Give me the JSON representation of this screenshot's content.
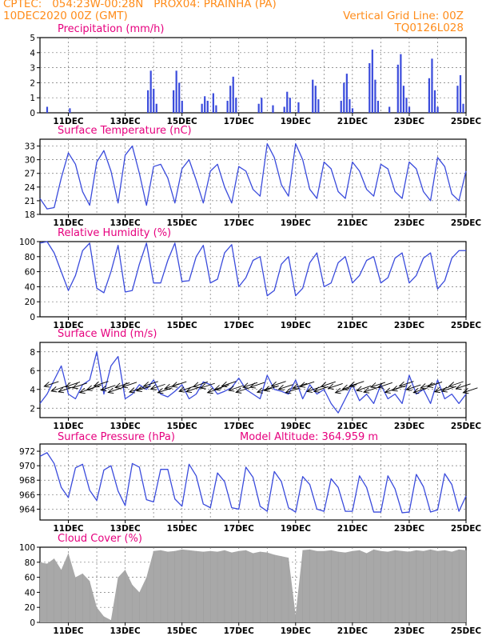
{
  "header": {
    "line1": "CPTEC:   054:23W-00:28N   PROX04: PRAINHA (PA)",
    "line2": "10DEC2020 00Z (GMT)",
    "right1": "Vertical Grid Line: 00Z",
    "right2": "TQ0126L028"
  },
  "x_dates": [
    "11DEC",
    "13DEC",
    "15DEC",
    "17DEC",
    "19DEC",
    "21DEC",
    "23DEC",
    "25DEC"
  ],
  "colors": {
    "series": "#3a4bdc",
    "title": "#e6007e",
    "header": "#ff8c1a",
    "cloud": "#a8a8a8"
  },
  "chart_data": [
    {
      "type": "bar",
      "title": "Precipitation (mm/h)",
      "ylim": [
        0,
        5
      ],
      "yticks": [
        0,
        1,
        2,
        3,
        4,
        5
      ],
      "x_range_days": [
        10,
        25
      ],
      "spikes": [
        [
          10.25,
          0.4
        ],
        [
          11.05,
          0.3
        ],
        [
          13.8,
          1.5
        ],
        [
          13.9,
          2.8
        ],
        [
          14.0,
          1.6
        ],
        [
          14.1,
          0.6
        ],
        [
          14.7,
          1.5
        ],
        [
          14.8,
          2.8
        ],
        [
          14.9,
          2.0
        ],
        [
          15.0,
          0.8
        ],
        [
          15.7,
          0.6
        ],
        [
          15.8,
          1.1
        ],
        [
          15.9,
          0.8
        ],
        [
          16.1,
          1.3
        ],
        [
          16.2,
          0.5
        ],
        [
          16.6,
          0.8
        ],
        [
          16.7,
          1.8
        ],
        [
          16.8,
          2.4
        ],
        [
          16.9,
          1.0
        ],
        [
          17.7,
          0.6
        ],
        [
          17.8,
          1.0
        ],
        [
          18.2,
          0.5
        ],
        [
          18.6,
          0.4
        ],
        [
          18.7,
          1.4
        ],
        [
          18.8,
          1.0
        ],
        [
          19.1,
          0.7
        ],
        [
          19.6,
          2.2
        ],
        [
          19.7,
          1.8
        ],
        [
          19.8,
          0.9
        ],
        [
          20.6,
          0.8
        ],
        [
          20.7,
          2.0
        ],
        [
          20.8,
          2.6
        ],
        [
          20.9,
          0.9
        ],
        [
          21.0,
          0.3
        ],
        [
          21.6,
          3.3
        ],
        [
          21.7,
          4.2
        ],
        [
          21.8,
          2.2
        ],
        [
          21.9,
          0.8
        ],
        [
          22.3,
          0.4
        ],
        [
          22.6,
          3.2
        ],
        [
          22.7,
          3.9
        ],
        [
          22.8,
          1.8
        ],
        [
          22.9,
          1.0
        ],
        [
          23.0,
          0.4
        ],
        [
          23.7,
          2.3
        ],
        [
          23.8,
          3.6
        ],
        [
          23.9,
          1.5
        ],
        [
          24.0,
          0.4
        ],
        [
          24.7,
          1.8
        ],
        [
          24.8,
          2.5
        ],
        [
          24.9,
          0.6
        ]
      ]
    },
    {
      "type": "line",
      "title": "Surface Temperature (nC)",
      "ylim": [
        18,
        34.5
      ],
      "yticks": [
        18,
        21,
        24,
        27,
        30,
        33
      ],
      "x": [
        10.0,
        10.25,
        10.5,
        10.75,
        11.0,
        11.25,
        11.5,
        11.75,
        12.0,
        12.25,
        12.5,
        12.75,
        13.0,
        13.25,
        13.5,
        13.75,
        14.0,
        14.25,
        14.5,
        14.75,
        15.0,
        15.25,
        15.5,
        15.75,
        16.0,
        16.25,
        16.5,
        16.75,
        17.0,
        17.25,
        17.5,
        17.75,
        18.0,
        18.25,
        18.5,
        18.75,
        19.0,
        19.25,
        19.5,
        19.75,
        20.0,
        20.25,
        20.5,
        20.75,
        21.0,
        21.25,
        21.5,
        21.75,
        22.0,
        22.25,
        22.5,
        22.75,
        23.0,
        23.25,
        23.5,
        23.75,
        24.0,
        24.25,
        24.5,
        24.75,
        25.0
      ],
      "y": [
        21.5,
        19.2,
        19.5,
        26.0,
        31.5,
        29.0,
        23.0,
        20.0,
        29.5,
        32.0,
        27.5,
        20.5,
        31.0,
        33.0,
        27.0,
        20.0,
        28.5,
        29.0,
        26.0,
        20.5,
        28.0,
        30.0,
        25.5,
        20.5,
        27.5,
        29.0,
        24.0,
        20.5,
        28.5,
        27.5,
        23.5,
        22.0,
        33.5,
        30.5,
        24.5,
        22.0,
        33.5,
        30.0,
        23.5,
        21.5,
        29.5,
        28.0,
        23.0,
        21.5,
        29.5,
        27.5,
        23.5,
        22.0,
        29.0,
        28.0,
        23.0,
        21.5,
        29.5,
        28.0,
        23.0,
        21.0,
        30.5,
        28.5,
        22.5,
        21.0,
        27.5
      ]
    },
    {
      "type": "line",
      "title": "Relative Humidity (%)",
      "ylim": [
        0,
        100
      ],
      "yticks": [
        0,
        20,
        40,
        60,
        80,
        100
      ],
      "x": [
        10.0,
        10.25,
        10.5,
        10.75,
        11.0,
        11.25,
        11.5,
        11.75,
        12.0,
        12.25,
        12.5,
        12.75,
        13.0,
        13.25,
        13.5,
        13.75,
        14.0,
        14.25,
        14.5,
        14.75,
        15.0,
        15.25,
        15.5,
        15.75,
        16.0,
        16.25,
        16.5,
        16.75,
        17.0,
        17.25,
        17.5,
        17.75,
        18.0,
        18.25,
        18.5,
        18.75,
        19.0,
        19.25,
        19.5,
        19.75,
        20.0,
        20.25,
        20.5,
        20.75,
        21.0,
        21.25,
        21.5,
        21.75,
        22.0,
        22.25,
        22.5,
        22.75,
        23.0,
        23.25,
        23.5,
        23.75,
        24.0,
        24.25,
        24.5,
        24.75,
        25.0
      ],
      "y": [
        98,
        100,
        85,
        60,
        35,
        55,
        88,
        98,
        38,
        32,
        60,
        95,
        33,
        35,
        70,
        98,
        45,
        45,
        75,
        98,
        47,
        48,
        80,
        95,
        45,
        50,
        85,
        96,
        40,
        52,
        75,
        80,
        28,
        35,
        70,
        80,
        28,
        38,
        72,
        85,
        40,
        45,
        72,
        80,
        45,
        55,
        75,
        80,
        45,
        52,
        78,
        85,
        45,
        55,
        78,
        85,
        37,
        48,
        78,
        88,
        88
      ]
    },
    {
      "type": "line",
      "title": "Surface Wind (m/s)",
      "ylim": [
        1,
        9
      ],
      "yticks": [
        2,
        4,
        6,
        8
      ],
      "wind_arrows": "arrows pointing toward southwest (easterly winds)",
      "x": [
        10.0,
        10.25,
        10.5,
        10.75,
        11.0,
        11.25,
        11.5,
        11.75,
        12.0,
        12.25,
        12.5,
        12.75,
        13.0,
        13.25,
        13.5,
        13.75,
        14.0,
        14.25,
        14.5,
        14.75,
        15.0,
        15.25,
        15.5,
        15.75,
        16.0,
        16.25,
        16.5,
        16.75,
        17.0,
        17.25,
        17.5,
        17.75,
        18.0,
        18.25,
        18.5,
        18.75,
        19.0,
        19.25,
        19.5,
        19.75,
        20.0,
        20.25,
        20.5,
        20.75,
        21.0,
        21.25,
        21.5,
        21.75,
        22.0,
        22.25,
        22.5,
        22.75,
        23.0,
        23.25,
        23.5,
        23.75,
        24.0,
        24.25,
        24.5,
        24.75,
        25.0
      ],
      "y": [
        2.5,
        3.5,
        5.0,
        6.5,
        3.5,
        3.0,
        4.5,
        5.0,
        8.0,
        3.5,
        6.5,
        7.5,
        3.0,
        3.5,
        4.5,
        4.0,
        5.0,
        3.5,
        3.2,
        3.8,
        4.5,
        3.0,
        3.5,
        4.8,
        4.5,
        3.5,
        3.8,
        4.2,
        5.2,
        4.0,
        3.5,
        3.0,
        5.5,
        4.0,
        3.8,
        3.5,
        5.0,
        3.0,
        4.5,
        3.5,
        4.0,
        2.5,
        1.5,
        3.0,
        4.5,
        2.8,
        3.5,
        2.5,
        4.5,
        3.0,
        3.5,
        2.5,
        5.5,
        3.5,
        4.0,
        2.5,
        5.0,
        3.0,
        3.5,
        2.5,
        3.5
      ]
    },
    {
      "type": "line",
      "title": "Surface Pressure (hPa)",
      "annotation": "Model Altitude: 364.959 m",
      "ylim": [
        962.5,
        973
      ],
      "yticks": [
        964,
        966,
        968,
        970,
        972
      ],
      "x": [
        10.0,
        10.25,
        10.5,
        10.75,
        11.0,
        11.25,
        11.5,
        11.75,
        12.0,
        12.25,
        12.5,
        12.75,
        13.0,
        13.25,
        13.5,
        13.75,
        14.0,
        14.25,
        14.5,
        14.75,
        15.0,
        15.25,
        15.5,
        15.75,
        16.0,
        16.25,
        16.5,
        16.75,
        17.0,
        17.25,
        17.5,
        17.75,
        18.0,
        18.25,
        18.5,
        18.75,
        19.0,
        19.25,
        19.5,
        19.75,
        20.0,
        20.25,
        20.5,
        20.75,
        21.0,
        21.25,
        21.5,
        21.75,
        22.0,
        22.25,
        22.5,
        22.75,
        23.0,
        23.25,
        23.5,
        23.75,
        24.0,
        24.25,
        24.5,
        24.75,
        25.0
      ],
      "y": [
        971.3,
        971.8,
        970.3,
        967.0,
        965.6,
        969.7,
        970.2,
        966.6,
        965.2,
        969.4,
        970.0,
        966.5,
        964.5,
        970.3,
        969.8,
        965.3,
        965.0,
        969.5,
        969.5,
        965.4,
        964.4,
        970.2,
        968.6,
        964.7,
        964.2,
        969.0,
        967.8,
        964.2,
        964.0,
        969.8,
        968.4,
        964.4,
        963.7,
        969.2,
        967.8,
        964.2,
        963.6,
        968.5,
        967.4,
        964.0,
        963.7,
        968.2,
        967.0,
        963.7,
        963.7,
        968.6,
        967.0,
        963.6,
        963.6,
        968.6,
        966.8,
        963.5,
        963.6,
        968.8,
        967.1,
        963.6,
        963.9,
        968.9,
        967.4,
        963.7,
        965.8
      ]
    },
    {
      "type": "area",
      "title": "Cloud Cover (%)",
      "ylim": [
        0,
        100
      ],
      "yticks": [
        0,
        20,
        40,
        60,
        80,
        100
      ],
      "x": [
        10.0,
        10.25,
        10.5,
        10.75,
        11.0,
        11.25,
        11.5,
        11.75,
        12.0,
        12.25,
        12.5,
        12.75,
        13.0,
        13.25,
        13.5,
        13.75,
        14.0,
        14.25,
        14.5,
        14.75,
        15.0,
        15.25,
        15.5,
        15.75,
        16.0,
        16.25,
        16.5,
        16.75,
        17.0,
        17.25,
        17.5,
        17.75,
        18.0,
        18.25,
        18.5,
        18.75,
        19.0,
        19.25,
        19.5,
        19.75,
        20.0,
        20.25,
        20.5,
        20.75,
        21.0,
        21.25,
        21.5,
        21.75,
        22.0,
        22.25,
        22.5,
        22.75,
        23.0,
        23.25,
        23.5,
        23.75,
        24.0,
        24.25,
        24.5,
        24.75,
        25.0
      ],
      "y": [
        80,
        78,
        85,
        70,
        92,
        60,
        65,
        55,
        20,
        8,
        3,
        60,
        70,
        50,
        40,
        60,
        95,
        96,
        94,
        95,
        97,
        96,
        95,
        94,
        95,
        94,
        96,
        93,
        95,
        96,
        92,
        94,
        93,
        90,
        88,
        86,
        10,
        96,
        97,
        95,
        95,
        96,
        94,
        93,
        95,
        96,
        92,
        97,
        95,
        94,
        96,
        95,
        94,
        96,
        95,
        97,
        95,
        96,
        94,
        97,
        96
      ]
    }
  ]
}
